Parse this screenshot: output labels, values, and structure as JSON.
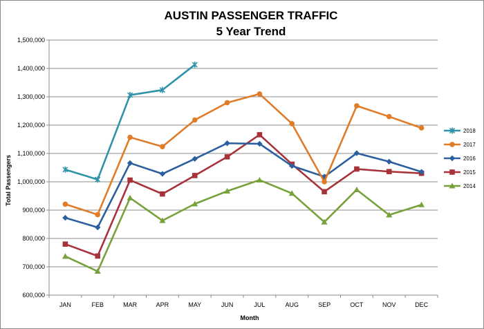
{
  "chart_data": {
    "type": "line",
    "title": "AUSTIN PASSENGER TRAFFIC",
    "subtitle": "5 Year Trend",
    "xlabel": "Month",
    "ylabel": "Total Passengers",
    "categories": [
      "JAN",
      "FEB",
      "MAR",
      "APR",
      "MAY",
      "JUN",
      "JUL",
      "AUG",
      "SEP",
      "OCT",
      "NOV",
      "DEC"
    ],
    "ylim": [
      600000,
      1500000
    ],
    "yticks": [
      600000,
      700000,
      800000,
      900000,
      1000000,
      1100000,
      1200000,
      1300000,
      1400000,
      1500000
    ],
    "ytick_labels": [
      "600,000",
      "700,000",
      "800,000",
      "900,000",
      "1,000,000",
      "1,100,000",
      "1,200,000",
      "1,300,000",
      "1,400,000",
      "1,500,000"
    ],
    "grid": true,
    "legend_position": "right",
    "series": [
      {
        "name": "2018",
        "color": "#2E93A8",
        "marker": "star",
        "values": [
          1043000,
          1008000,
          1306000,
          1324000,
          1413000,
          null,
          null,
          null,
          null,
          null,
          null,
          null
        ]
      },
      {
        "name": "2017",
        "color": "#E07B28",
        "marker": "circle",
        "values": [
          921000,
          884000,
          1157000,
          1124000,
          1218000,
          1279000,
          1310000,
          1205000,
          1000000,
          1268000,
          1230000,
          1190000
        ]
      },
      {
        "name": "2016",
        "color": "#2C5F9E",
        "marker": "diamond",
        "values": [
          873000,
          839000,
          1066000,
          1028000,
          1081000,
          1136000,
          1134000,
          1056000,
          1018000,
          1101000,
          1071000,
          1035000
        ]
      },
      {
        "name": "2015",
        "color": "#A8323A",
        "marker": "square",
        "values": [
          780000,
          738000,
          1006000,
          957000,
          1022000,
          1088000,
          1166000,
          1062000,
          965000,
          1045000,
          1036000,
          1030000
        ]
      },
      {
        "name": "2014",
        "color": "#77A13A",
        "marker": "triangle",
        "values": [
          737000,
          684000,
          943000,
          863000,
          922000,
          967000,
          1006000,
          959000,
          858000,
          972000,
          883000,
          919000
        ]
      }
    ]
  }
}
